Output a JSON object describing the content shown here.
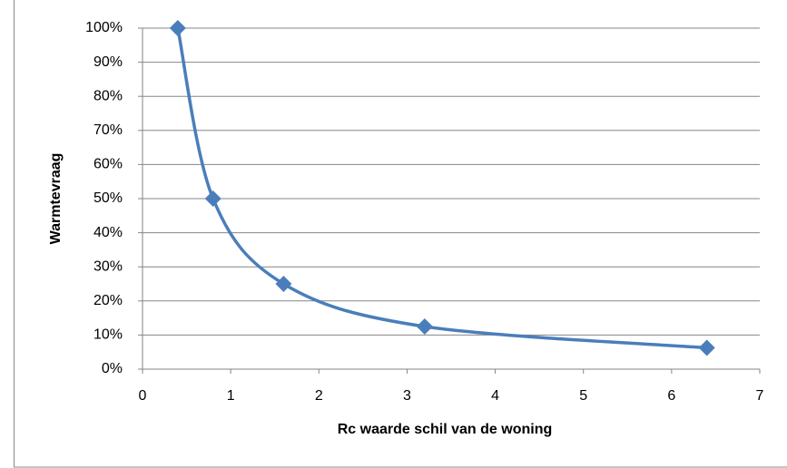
{
  "chart_data": {
    "type": "scatter",
    "x_label": "Rc waarde schil van de woning",
    "y_label": "Warmtevraag",
    "series": [
      {
        "name": "Warmtevraag",
        "color": "#4a7ebb",
        "x": [
          0.4,
          0.8,
          1.6,
          3.2,
          6.4
        ],
        "values": [
          100,
          50,
          25,
          12.5,
          6.25
        ]
      }
    ],
    "xlim": [
      0,
      7
    ],
    "xticks": [
      0,
      1,
      2,
      3,
      4,
      5,
      6,
      7
    ],
    "ylim": [
      0,
      100
    ],
    "yticks": [
      {
        "value": 0,
        "label": "0%"
      },
      {
        "value": 10,
        "label": "10%"
      },
      {
        "value": 20,
        "label": "20%"
      },
      {
        "value": 30,
        "label": "30%"
      },
      {
        "value": 40,
        "label": "40%"
      },
      {
        "value": 50,
        "label": "50%"
      },
      {
        "value": 60,
        "label": "60%"
      },
      {
        "value": 70,
        "label": "70%"
      },
      {
        "value": 80,
        "label": "80%"
      },
      {
        "value": 90,
        "label": "90%"
      },
      {
        "value": 100,
        "label": "100%"
      }
    ],
    "grid": true,
    "smooth": true
  }
}
